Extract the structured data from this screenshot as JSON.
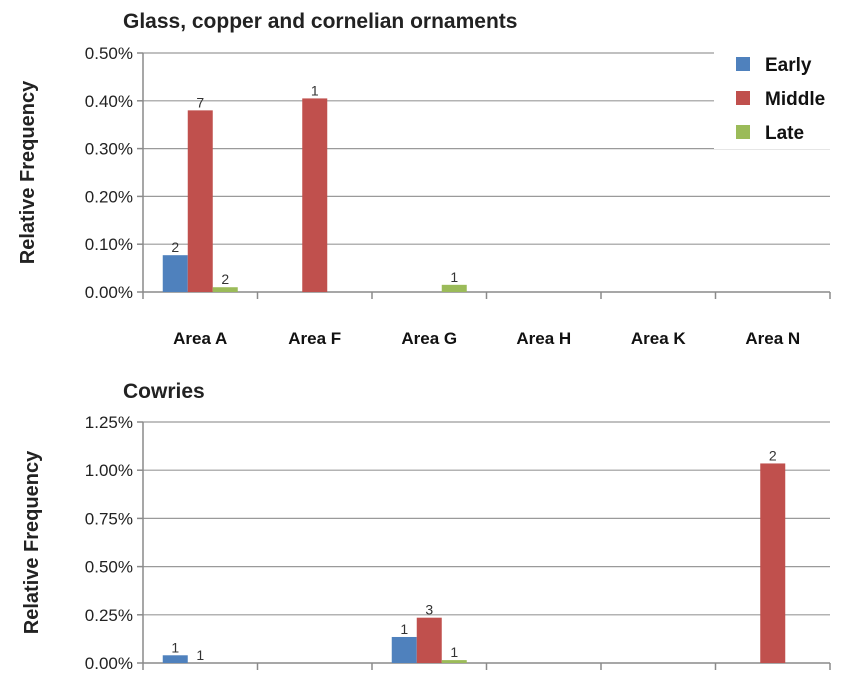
{
  "chart_data": [
    {
      "type": "bar",
      "title": "Glass, copper and cornelian ornaments",
      "ylabel": "Relative Frequency",
      "categories": [
        "Area A",
        "Area F",
        "Area G",
        "Area H",
        "Area K",
        "Area N"
      ],
      "ylim": [
        0,
        0.5
      ],
      "yticks": [
        "0.00%",
        "0.10%",
        "0.20%",
        "0.30%",
        "0.40%",
        "0.50%"
      ],
      "yticks_values": [
        0,
        0.1,
        0.2,
        0.3,
        0.4,
        0.5
      ],
      "grid": true,
      "legend": "top-right",
      "series": [
        {
          "name": "Early",
          "color": "#4f81bd",
          "values": [
            0.077,
            0,
            0,
            0,
            0,
            0
          ],
          "labels": [
            "2",
            "",
            "",
            "",
            "",
            ""
          ]
        },
        {
          "name": "Middle",
          "color": "#c0504d",
          "values": [
            0.38,
            0.405,
            0,
            0,
            0,
            0
          ],
          "labels": [
            "7",
            "1",
            "",
            "",
            "",
            ""
          ]
        },
        {
          "name": "Late",
          "color": "#9bbb59",
          "values": [
            0.01,
            0,
            0.015,
            0,
            0,
            0
          ],
          "labels": [
            "2",
            "",
            "1",
            "",
            "",
            ""
          ]
        }
      ]
    },
    {
      "type": "bar",
      "title": "Cowries",
      "ylabel": "Relative Frequency",
      "categories": [
        "Area A",
        "Area F",
        "Area G",
        "Area H",
        "Area K",
        "Area N"
      ],
      "ylim": [
        0,
        1.25
      ],
      "yticks": [
        "0.00%",
        "0.25%",
        "0.50%",
        "0.75%",
        "1.00%",
        "1.25%"
      ],
      "yticks_values": [
        0,
        0.25,
        0.5,
        0.75,
        1.0,
        1.25
      ],
      "grid": true,
      "series": [
        {
          "name": "Early",
          "color": "#4f81bd",
          "values": [
            0.04,
            0,
            0.135,
            0,
            0,
            0
          ],
          "labels": [
            "1",
            "",
            "1",
            "",
            "",
            ""
          ]
        },
        {
          "name": "Middle",
          "color": "#c0504d",
          "values": [
            0,
            0,
            0.235,
            0,
            0,
            1.035
          ],
          "labels": [
            "1",
            "",
            "3",
            "",
            "",
            "2"
          ]
        },
        {
          "name": "Late",
          "color": "#9bbb59",
          "values": [
            0,
            0,
            0.015,
            0,
            0,
            0
          ],
          "labels": [
            "",
            "",
            "1",
            "",
            "",
            ""
          ]
        }
      ]
    }
  ]
}
